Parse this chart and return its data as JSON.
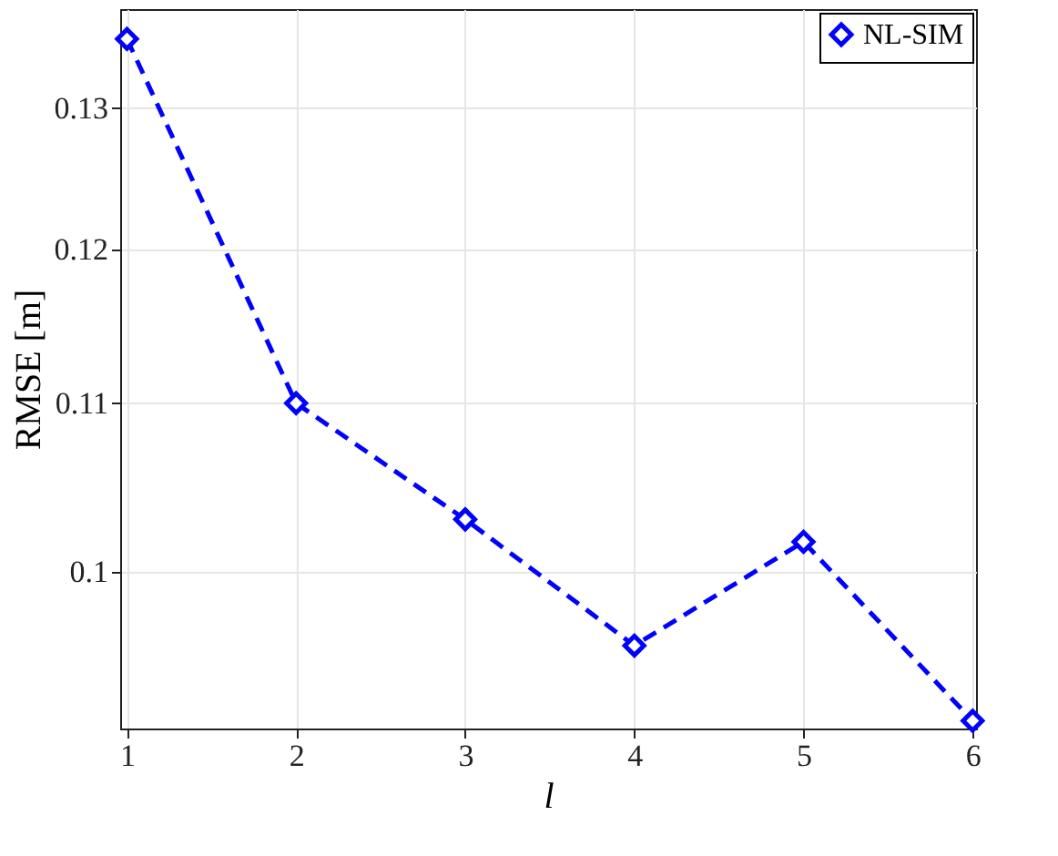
{
  "chart_data": {
    "type": "line",
    "xlabel": "l",
    "ylabel": "RMSE [m]",
    "x": [
      1,
      2,
      3,
      4,
      5,
      6
    ],
    "series": [
      {
        "name": "NL-SIM",
        "color": "#0000ff",
        "values": [
          0.1352,
          0.11,
          0.103,
          0.0959,
          0.1017,
          0.0919
        ]
      }
    ],
    "xlim": [
      0.96,
      6.02
    ],
    "xticks": [
      1,
      2,
      3,
      4,
      5,
      6
    ],
    "ylim": [
      0.0915,
      0.1375
    ],
    "yticks": [
      0.1,
      0.11,
      0.12,
      0.13
    ],
    "log": "y",
    "grid": true,
    "legend": "top right",
    "marker": "diamond",
    "line_style": "dashed"
  }
}
